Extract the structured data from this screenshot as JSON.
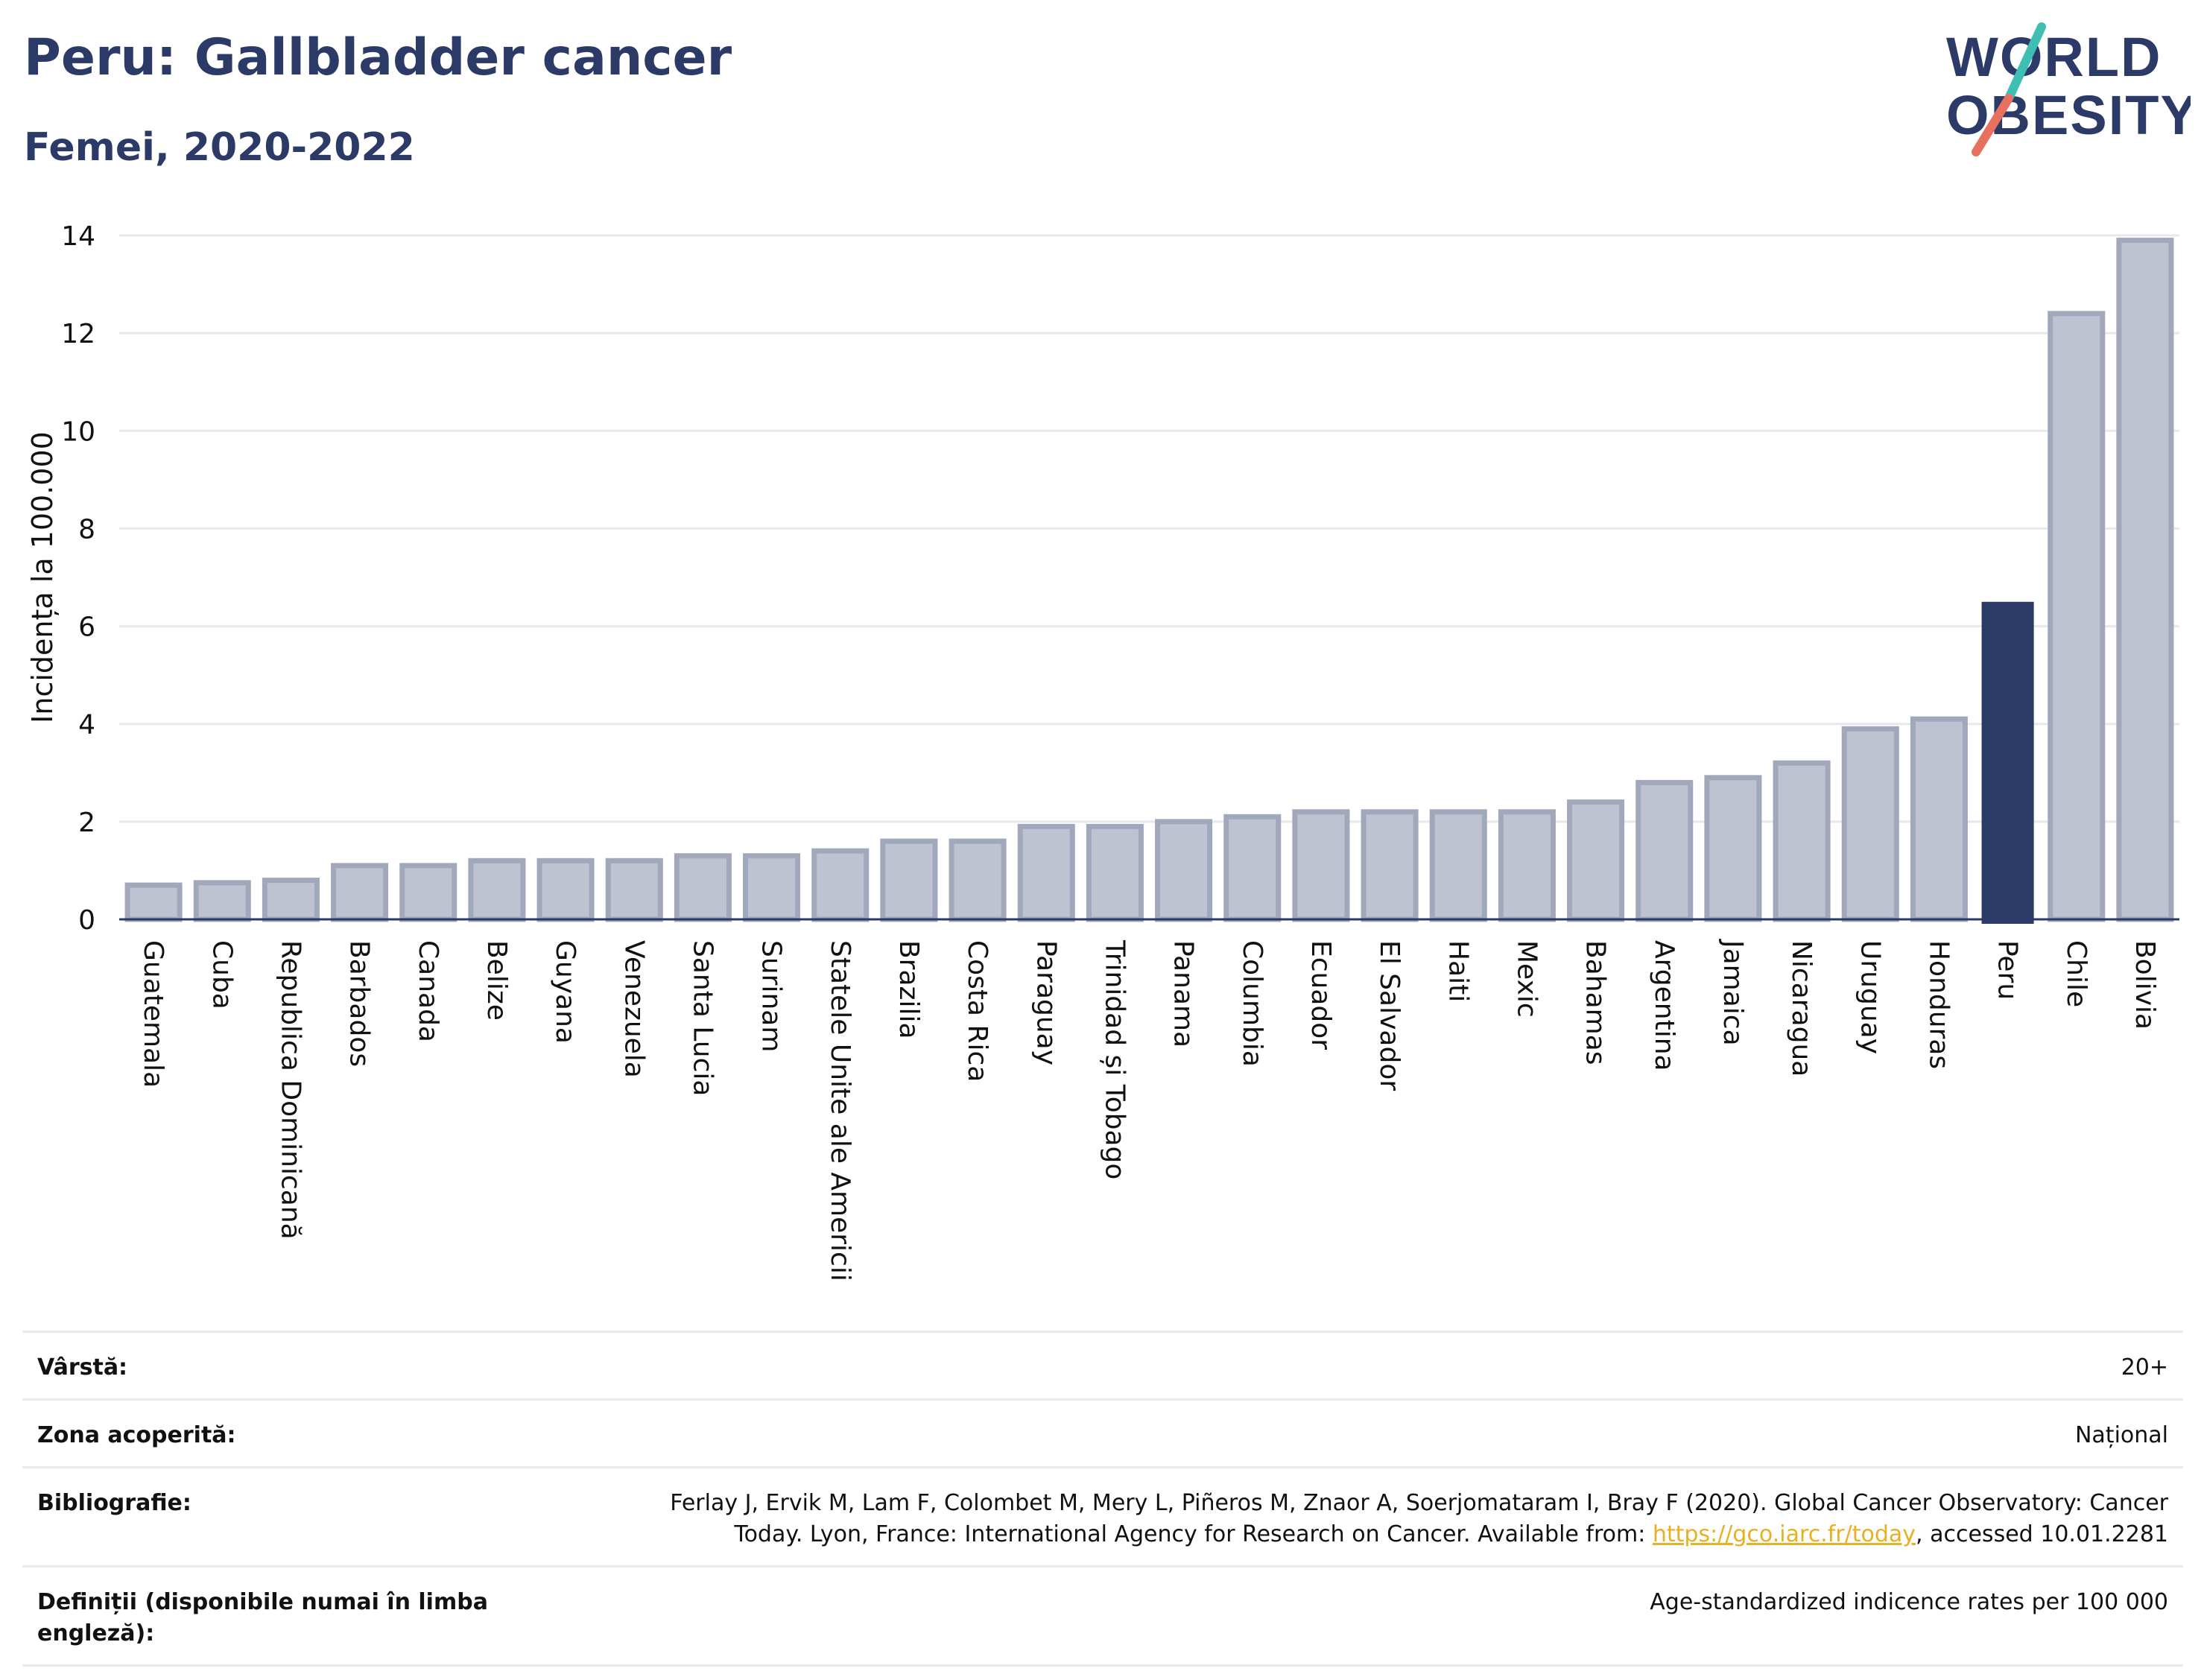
{
  "header": {
    "title": "Peru: Gallbladder cancer",
    "subtitle": "Femei, 2020-2022"
  },
  "logo": {
    "line1": "WORLD",
    "line2": "OBESITY"
  },
  "colors": {
    "title": "#2b3a67",
    "bar_default": "#bfc3d1",
    "bar_default_stroke": "#a2a8bc",
    "bar_highlight": "#2b3a67",
    "grid": "#e6e8ee",
    "logo_teal": "#3fbfb3",
    "logo_coral": "#e8705e",
    "link": "#e8b022"
  },
  "chart_data": {
    "type": "bar",
    "ylabel": "Incidența la 100.000",
    "xlabel": "",
    "ylim": [
      0,
      14
    ],
    "yticks": [
      0,
      2,
      4,
      6,
      8,
      10,
      12,
      14
    ],
    "grid": true,
    "highlight": "Peru",
    "categories": [
      "Guatemala",
      "Cuba",
      "Republica Dominicană",
      "Barbados",
      "Canada",
      "Belize",
      "Guyana",
      "Venezuela",
      "Santa Lucia",
      "Surinam",
      "Statele Unite ale Americii",
      "Brazilia",
      "Costa Rica",
      "Paraguay",
      "Trinidad și Tobago",
      "Panama",
      "Columbia",
      "Ecuador",
      "El Salvador",
      "Haiti",
      "Mexic",
      "Bahamas",
      "Argentina",
      "Jamaica",
      "Nicaragua",
      "Uruguay",
      "Honduras",
      "Peru",
      "Chile",
      "Bolivia"
    ],
    "values": [
      0.7,
      0.75,
      0.8,
      1.1,
      1.1,
      1.2,
      1.2,
      1.2,
      1.3,
      1.3,
      1.4,
      1.6,
      1.6,
      1.9,
      1.9,
      2.0,
      2.1,
      2.2,
      2.2,
      2.2,
      2.2,
      2.4,
      2.8,
      2.9,
      3.2,
      3.9,
      4.1,
      6.5,
      12.4,
      13.9
    ]
  },
  "info": [
    {
      "label": "Vârstă:",
      "value": "20+"
    },
    {
      "label": "Zona acoperită:",
      "value": "Național"
    },
    {
      "label": "Bibliografie:",
      "value_line1": "Ferlay J, Ervik M, Lam F, Colombet M, Mery L, Piñeros M, Znaor A, Soerjomataram I, Bray F (2020). Global Cancer Observatory: Cancer",
      "value_line2_pre": "Today. Lyon, France: International Agency for Research on Cancer. Available from: ",
      "value_link": "https://gco.iarc.fr/today",
      "value_line2_post": ", accessed 10.01.2281"
    },
    {
      "label": "Definiții (disponibile numai în limba engleză):",
      "value": "Age-standardized indicence rates per 100 000"
    }
  ]
}
